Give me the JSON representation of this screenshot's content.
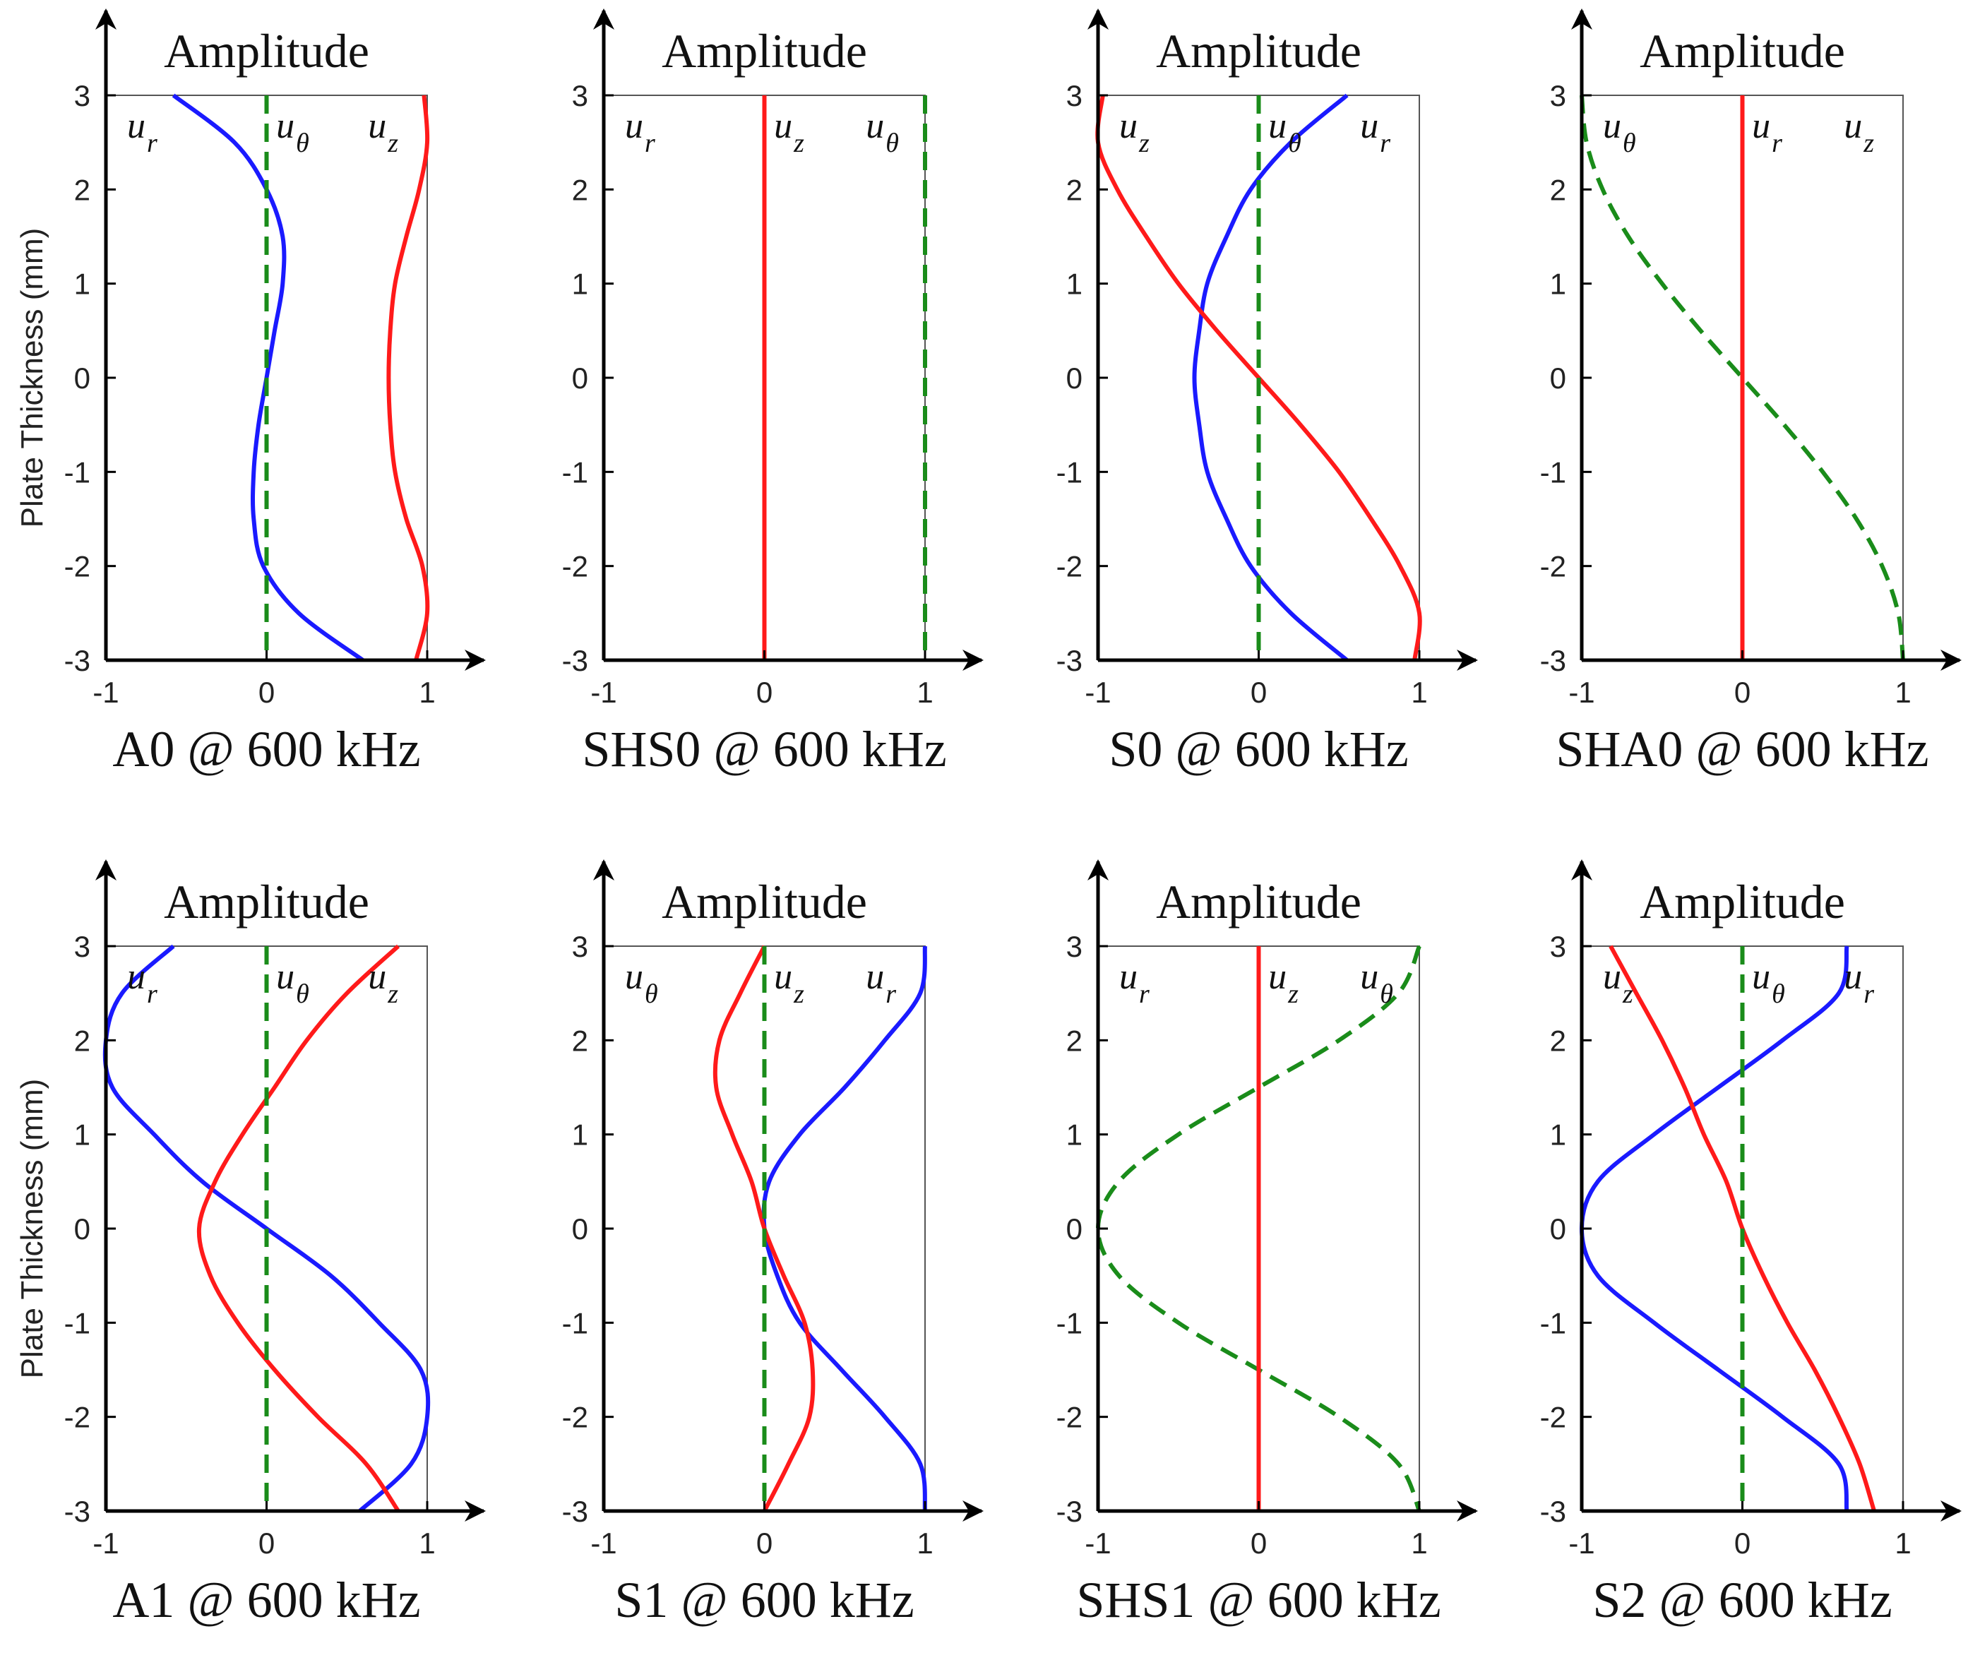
{
  "figure": {
    "ylabel": "Plate Thickness (mm)",
    "amplitude_label": "Amplitude",
    "x_ticks": [
      "-1",
      "0",
      "1"
    ],
    "y_ticks": [
      "3",
      "2",
      "1",
      "0",
      "-1",
      "-2",
      "-3"
    ],
    "colors": {
      "ur": "#1a1aff",
      "uz": "#ff1a1a",
      "utheta": "#1a8c1a"
    }
  },
  "chart_data": [
    {
      "type": "line",
      "title": "A0 @ 600 kHz",
      "xlabel": "Amplitude",
      "ylabel": "Plate Thickness (mm)",
      "xlim": [
        -1,
        1
      ],
      "ylim": [
        -3,
        3
      ],
      "curve_labels": [
        "u_r",
        "u_θ",
        "u_z"
      ],
      "series": [
        {
          "name": "u_r",
          "style": "solid",
          "color": "#1a1aff",
          "y": [
            3,
            2.5,
            2,
            1.5,
            1,
            0.5,
            0,
            -0.5,
            -1,
            -1.5,
            -2,
            -2.5,
            -3
          ],
          "x": [
            -0.58,
            -0.2,
            0.0,
            0.1,
            0.1,
            0.05,
            0.0,
            -0.05,
            -0.08,
            -0.08,
            -0.02,
            0.2,
            0.6
          ]
        },
        {
          "name": "u_z",
          "style": "solid",
          "color": "#ff1a1a",
          "y": [
            3,
            2.5,
            2,
            1.5,
            1,
            0.5,
            0,
            -0.5,
            -1,
            -1.5,
            -2,
            -2.5,
            -3
          ],
          "x": [
            0.98,
            1.0,
            0.95,
            0.87,
            0.8,
            0.77,
            0.76,
            0.77,
            0.8,
            0.87,
            0.97,
            1.0,
            0.93
          ]
        },
        {
          "name": "u_θ",
          "style": "dashed",
          "color": "#1a8c1a",
          "y": [
            3,
            -3
          ],
          "x": [
            0,
            0
          ]
        }
      ]
    },
    {
      "type": "line",
      "title": "SHS0 @ 600 kHz",
      "xlabel": "Amplitude",
      "ylabel": "Plate Thickness (mm)",
      "xlim": [
        -1,
        1
      ],
      "ylim": [
        -3,
        3
      ],
      "curve_labels": [
        "u_r",
        "u_z",
        "u_θ"
      ],
      "series": [
        {
          "name": "u_r / u_z",
          "style": "solid",
          "color": "#ff1a1a",
          "y": [
            3,
            -3
          ],
          "x": [
            0,
            0
          ]
        },
        {
          "name": "u_θ",
          "style": "dashed",
          "color": "#1a8c1a",
          "y": [
            3,
            -3
          ],
          "x": [
            1,
            1
          ]
        }
      ]
    },
    {
      "type": "line",
      "title": "S0 @ 600 kHz",
      "xlabel": "Amplitude",
      "ylabel": "Plate Thickness (mm)",
      "xlim": [
        -1,
        1
      ],
      "ylim": [
        -3,
        3
      ],
      "curve_labels": [
        "u_z",
        "u_θ",
        "u_r"
      ],
      "series": [
        {
          "name": "u_r",
          "style": "solid",
          "color": "#1a1aff",
          "y": [
            3,
            2.5,
            2,
            1.5,
            1,
            0.5,
            0,
            -0.5,
            -1,
            -1.5,
            -2,
            -2.5,
            -3
          ],
          "x": [
            0.55,
            0.2,
            -0.05,
            -0.2,
            -0.32,
            -0.37,
            -0.4,
            -0.37,
            -0.32,
            -0.2,
            -0.05,
            0.2,
            0.55
          ]
        },
        {
          "name": "u_z",
          "style": "solid",
          "color": "#ff1a1a",
          "y": [
            3,
            2.5,
            2,
            1.5,
            1,
            0.5,
            0,
            -0.5,
            -1,
            -1.5,
            -2,
            -2.5,
            -3
          ],
          "x": [
            -0.97,
            -1.0,
            -0.88,
            -0.7,
            -0.5,
            -0.26,
            0.0,
            0.26,
            0.5,
            0.7,
            0.88,
            1.0,
            0.97
          ]
        },
        {
          "name": "u_θ",
          "style": "dashed",
          "color": "#1a8c1a",
          "y": [
            3,
            -3
          ],
          "x": [
            0,
            0
          ]
        }
      ]
    },
    {
      "type": "line",
      "title": "SHA0 @ 600 kHz",
      "xlabel": "Amplitude",
      "ylabel": "Plate Thickness (mm)",
      "xlim": [
        -1,
        1
      ],
      "ylim": [
        -3,
        3
      ],
      "curve_labels": [
        "u_θ",
        "u_r",
        "u_z"
      ],
      "series": [
        {
          "name": "u_θ",
          "style": "dashed",
          "color": "#1a8c1a",
          "y": [
            3,
            2.5,
            2,
            1.5,
            1,
            0.5,
            0,
            -0.5,
            -1,
            -1.5,
            -2,
            -2.5,
            -3
          ],
          "x": [
            -1.0,
            -0.97,
            -0.87,
            -0.71,
            -0.5,
            -0.26,
            0.0,
            0.26,
            0.5,
            0.71,
            0.87,
            0.97,
            1.0
          ]
        },
        {
          "name": "u_r / u_z",
          "style": "solid",
          "color": "#ff1a1a",
          "y": [
            3,
            -3
          ],
          "x": [
            0,
            0
          ]
        }
      ]
    },
    {
      "type": "line",
      "title": "A1 @ 600 kHz",
      "xlabel": "Amplitude",
      "ylabel": "Plate Thickness (mm)",
      "xlim": [
        -1,
        1
      ],
      "ylim": [
        -3,
        3
      ],
      "curve_labels": [
        "u_r",
        "u_θ",
        "u_z"
      ],
      "series": [
        {
          "name": "u_r",
          "style": "solid",
          "color": "#1a1aff",
          "y": [
            3,
            2.5,
            2,
            1.5,
            1,
            0.5,
            0,
            -0.5,
            -1,
            -1.5,
            -2,
            -2.5,
            -3
          ],
          "x": [
            -0.58,
            -0.9,
            -1.0,
            -0.96,
            -0.7,
            -0.4,
            0.0,
            0.4,
            0.7,
            0.96,
            1.0,
            0.9,
            0.58
          ]
        },
        {
          "name": "u_z",
          "style": "solid",
          "color": "#ff1a1a",
          "y": [
            3,
            2.5,
            2,
            1.5,
            1,
            0.5,
            0,
            -0.5,
            -1,
            -1.5,
            -2,
            -2.5,
            -3
          ],
          "x": [
            0.82,
            0.5,
            0.25,
            0.05,
            -0.15,
            -0.32,
            -0.42,
            -0.35,
            -0.18,
            0.05,
            0.32,
            0.62,
            0.82
          ]
        },
        {
          "name": "u_θ",
          "style": "dashed",
          "color": "#1a8c1a",
          "y": [
            3,
            -3
          ],
          "x": [
            0,
            0
          ]
        }
      ]
    },
    {
      "type": "line",
      "title": "S1 @ 600 kHz",
      "xlabel": "Amplitude",
      "ylabel": "Plate Thickness (mm)",
      "xlim": [
        -1,
        1
      ],
      "ylim": [
        -3,
        3
      ],
      "curve_labels": [
        "u_θ",
        "u_z",
        "u_r"
      ],
      "series": [
        {
          "name": "u_r",
          "style": "solid",
          "color": "#1a1aff",
          "y": [
            3,
            2.5,
            2,
            1.5,
            1,
            0.5,
            0,
            -0.5,
            -1,
            -1.5,
            -2,
            -2.5,
            -3
          ],
          "x": [
            1.0,
            0.97,
            0.75,
            0.5,
            0.22,
            0.03,
            0.0,
            0.08,
            0.22,
            0.48,
            0.75,
            0.97,
            1.0
          ]
        },
        {
          "name": "u_z",
          "style": "solid",
          "color": "#ff1a1a",
          "y": [
            3,
            2.5,
            2,
            1.5,
            1,
            0.5,
            0,
            -0.5,
            -1,
            -1.5,
            -2,
            -2.5,
            -3
          ],
          "x": [
            0.0,
            -0.15,
            -0.28,
            -0.3,
            -0.2,
            -0.08,
            0.0,
            0.12,
            0.25,
            0.3,
            0.28,
            0.15,
            0.0
          ]
        },
        {
          "name": "u_θ",
          "style": "dashed",
          "color": "#1a8c1a",
          "y": [
            3,
            -3
          ],
          "x": [
            0,
            0
          ]
        }
      ]
    },
    {
      "type": "line",
      "title": "SHS1 @ 600 kHz",
      "xlabel": "Amplitude",
      "ylabel": "Plate Thickness (mm)",
      "xlim": [
        -1,
        1
      ],
      "ylim": [
        -3,
        3
      ],
      "curve_labels": [
        "u_r",
        "u_z",
        "u_θ"
      ],
      "series": [
        {
          "name": "u_θ",
          "style": "dashed",
          "color": "#1a8c1a",
          "y": [
            3,
            2.5,
            2,
            1.5,
            1,
            0.5,
            0,
            -0.5,
            -1,
            -1.5,
            -2,
            -2.5,
            -3
          ],
          "x": [
            1.0,
            0.87,
            0.5,
            0.0,
            -0.5,
            -0.87,
            -1.0,
            -0.87,
            -0.5,
            0.0,
            0.5,
            0.87,
            1.0
          ]
        },
        {
          "name": "u_r / u_z",
          "style": "solid",
          "color": "#ff1a1a",
          "y": [
            3,
            -3
          ],
          "x": [
            0,
            0
          ]
        }
      ]
    },
    {
      "type": "line",
      "title": "S2 @ 600 kHz",
      "xlabel": "Amplitude",
      "ylabel": "Plate Thickness (mm)",
      "xlim": [
        -1,
        1
      ],
      "ylim": [
        -3,
        3
      ],
      "curve_labels": [
        "u_z",
        "u_θ",
        "u_r"
      ],
      "series": [
        {
          "name": "u_r",
          "style": "solid",
          "color": "#1a1aff",
          "y": [
            3,
            2.5,
            2,
            1.5,
            1,
            0.5,
            0,
            -0.5,
            -1,
            -1.5,
            -2,
            -2.5,
            -3
          ],
          "x": [
            0.65,
            0.6,
            0.25,
            -0.15,
            -0.55,
            -0.9,
            -1.0,
            -0.9,
            -0.55,
            -0.15,
            0.25,
            0.6,
            0.65
          ]
        },
        {
          "name": "u_z",
          "style": "solid",
          "color": "#ff1a1a",
          "y": [
            3,
            2.5,
            2,
            1.5,
            1,
            0.5,
            0,
            -0.5,
            -1,
            -1.5,
            -2,
            -2.5,
            -3
          ],
          "x": [
            -0.82,
            -0.66,
            -0.5,
            -0.36,
            -0.24,
            -0.1,
            0.0,
            0.13,
            0.28,
            0.45,
            0.6,
            0.73,
            0.82
          ]
        },
        {
          "name": "u_θ",
          "style": "dashed",
          "color": "#1a8c1a",
          "y": [
            3,
            -3
          ],
          "x": [
            0,
            0
          ]
        }
      ]
    }
  ]
}
